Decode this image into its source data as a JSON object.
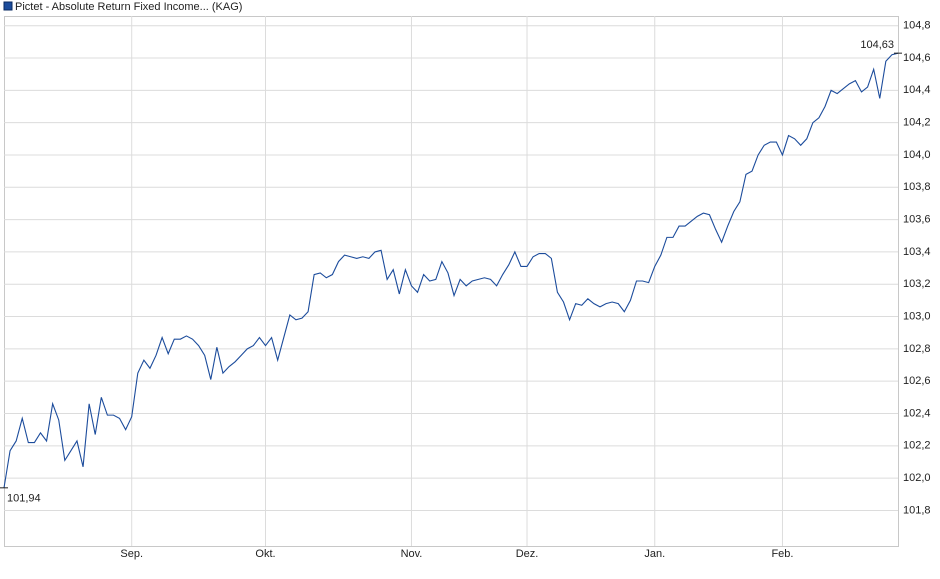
{
  "chart_data": {
    "type": "line",
    "legend": "top-left",
    "grid": true,
    "categories": [
      null,
      null,
      null,
      null,
      null,
      null,
      null,
      null,
      null,
      null,
      null,
      null,
      null,
      null,
      null,
      null,
      null,
      null,
      null,
      null,
      null,
      "Sep.",
      null,
      null,
      null,
      null,
      null,
      null,
      null,
      null,
      null,
      null,
      null,
      null,
      null,
      null,
      null,
      null,
      null,
      null,
      null,
      null,
      null,
      "Okt.",
      null,
      null,
      null,
      null,
      null,
      null,
      null,
      null,
      null,
      null,
      null,
      null,
      null,
      null,
      null,
      null,
      null,
      null,
      null,
      null,
      null,
      null,
      null,
      "Nov.",
      null,
      null,
      null,
      null,
      null,
      null,
      null,
      null,
      null,
      null,
      null,
      null,
      null,
      null,
      null,
      null,
      null,
      null,
      "Dez.",
      null,
      null,
      null,
      null,
      null,
      null,
      null,
      null,
      null,
      null,
      null,
      null,
      null,
      null,
      null,
      null,
      null,
      null,
      null,
      null,
      "Jan.",
      null,
      null,
      null,
      null,
      null,
      null,
      null,
      null,
      null,
      null,
      null,
      null,
      null,
      null,
      null,
      null,
      null,
      null,
      null,
      null,
      "Feb.",
      null,
      null,
      null,
      null,
      null,
      null,
      null,
      null,
      null,
      null,
      null,
      null,
      null,
      null,
      null,
      null,
      null,
      null,
      null
    ],
    "series": [
      {
        "name": "Pictet - Absolute Return Fixed Income... (KAG)",
        "color": "#1c4c9c",
        "values": [
          101.94,
          102.17,
          102.23,
          102.37,
          102.22,
          102.22,
          102.28,
          102.23,
          102.46,
          102.36,
          102.11,
          102.17,
          102.23,
          102.07,
          102.46,
          102.27,
          102.5,
          102.39,
          102.39,
          102.37,
          102.3,
          102.38,
          102.65,
          102.73,
          102.68,
          102.76,
          102.87,
          102.77,
          102.86,
          102.86,
          102.88,
          102.86,
          102.82,
          102.76,
          102.61,
          102.81,
          102.65,
          102.69,
          102.72,
          102.76,
          102.8,
          102.82,
          102.87,
          102.82,
          102.87,
          102.73,
          102.87,
          103.01,
          102.98,
          102.99,
          103.03,
          103.26,
          103.27,
          103.24,
          103.26,
          103.34,
          103.38,
          103.37,
          103.36,
          103.37,
          103.36,
          103.4,
          103.41,
          103.23,
          103.29,
          103.14,
          103.29,
          103.19,
          103.15,
          103.26,
          103.22,
          103.23,
          103.34,
          103.27,
          103.13,
          103.23,
          103.19,
          103.22,
          103.23,
          103.24,
          103.23,
          103.19,
          103.26,
          103.32,
          103.4,
          103.31,
          103.31,
          103.37,
          103.39,
          103.39,
          103.36,
          103.15,
          103.09,
          102.98,
          103.08,
          103.07,
          103.11,
          103.08,
          103.06,
          103.08,
          103.09,
          103.08,
          103.03,
          103.1,
          103.22,
          103.22,
          103.21,
          103.31,
          103.38,
          103.49,
          103.49,
          103.56,
          103.56,
          103.59,
          103.62,
          103.64,
          103.63,
          103.54,
          103.46,
          103.56,
          103.65,
          103.71,
          103.88,
          103.9,
          104.0,
          104.06,
          104.08,
          104.08,
          104.0,
          104.12,
          104.1,
          104.06,
          104.1,
          104.2,
          104.23,
          104.3,
          104.4,
          104.38,
          104.41,
          104.44,
          104.46,
          104.39,
          104.42,
          104.53,
          104.35,
          104.58,
          104.62,
          104.63
        ],
        "value_labels": [
          "101,94",
          null,
          null,
          null,
          null,
          null,
          null,
          null,
          null,
          null,
          null,
          null,
          null,
          null,
          null,
          null,
          null,
          null,
          null,
          null,
          null,
          null,
          null,
          null,
          null,
          null,
          null,
          null,
          null,
          null,
          null,
          null,
          null,
          null,
          null,
          null,
          null,
          null,
          null,
          null,
          null,
          null,
          null,
          null,
          null,
          null,
          null,
          null,
          null,
          null,
          null,
          null,
          null,
          null,
          null,
          null,
          null,
          null,
          null,
          null,
          null,
          null,
          null,
          null,
          null,
          null,
          null,
          null,
          null,
          null,
          null,
          null,
          null,
          null,
          null,
          null,
          null,
          null,
          null,
          null,
          null,
          null,
          null,
          null,
          null,
          null,
          null,
          null,
          null,
          null,
          null,
          null,
          null,
          null,
          null,
          null,
          null,
          null,
          null,
          null,
          null,
          null,
          null,
          null,
          null,
          null,
          null,
          null,
          null,
          null,
          null,
          null,
          null,
          null,
          null,
          null,
          null,
          null,
          null,
          null,
          null,
          null,
          null,
          null,
          null,
          null,
          null,
          null,
          null,
          null,
          null,
          null,
          null,
          null,
          null,
          null,
          null,
          null,
          null,
          null,
          null,
          null,
          null,
          null,
          null,
          null,
          null,
          "104,63"
        ]
      }
    ],
    "ylim": [
      101.58,
      104.86
    ],
    "yticks": [
      {
        "value": 101.8,
        "label": "101,8"
      },
      {
        "value": 102.0,
        "label": "102,0"
      },
      {
        "value": 102.2,
        "label": "102,2"
      },
      {
        "value": 102.4,
        "label": "102,4"
      },
      {
        "value": 102.6,
        "label": "102,6"
      },
      {
        "value": 102.8,
        "label": "102,8"
      },
      {
        "value": 103.0,
        "label": "103,0"
      },
      {
        "value": 103.2,
        "label": "103,2"
      },
      {
        "value": 103.4,
        "label": "103,4"
      },
      {
        "value": 103.6,
        "label": "103,6"
      },
      {
        "value": 103.8,
        "label": "103,8"
      },
      {
        "value": 104.0,
        "label": "104,0"
      },
      {
        "value": 104.2,
        "label": "104,2"
      },
      {
        "value": 104.4,
        "label": "104,4"
      },
      {
        "value": 104.6,
        "label": "104,6"
      },
      {
        "value": 104.8,
        "label": "104,8"
      }
    ]
  }
}
